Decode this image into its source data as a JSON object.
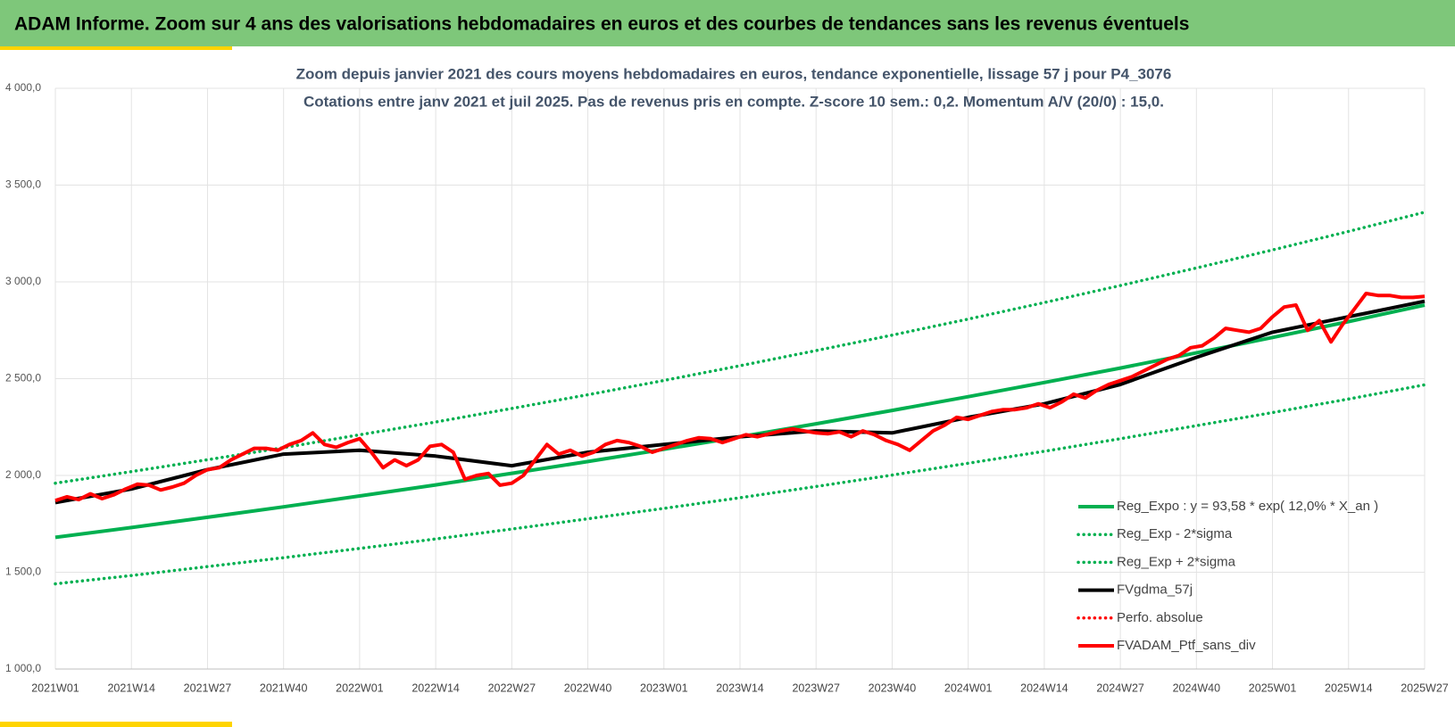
{
  "header": {
    "title": "ADAM Informe. Zoom sur 4 ans des valorisations hebdomadaires en euros et des courbes de tendances sans les revenus éventuels"
  },
  "chart_data": {
    "type": "line",
    "title": "Zoom depuis janvier 2021 des cours moyens hebdomadaires  en euros, tendance exponentielle, lissage 57 j pour P4_3076",
    "subtitle": "Cotations entre janv 2021 et juil 2025. Pas de revenus pris en compte. Z-score 10 sem.: 0,2. Momentum A/V (20/0) : 15,0.",
    "xlim": [
      0,
      234
    ],
    "xticks": [
      {
        "value": 0,
        "label": "2021W01"
      },
      {
        "value": 13,
        "label": "2021W14"
      },
      {
        "value": 26,
        "label": "2021W27"
      },
      {
        "value": 39,
        "label": "2021W40"
      },
      {
        "value": 52,
        "label": "2022W01"
      },
      {
        "value": 65,
        "label": "2022W14"
      },
      {
        "value": 78,
        "label": "2022W27"
      },
      {
        "value": 91,
        "label": "2022W40"
      },
      {
        "value": 104,
        "label": "2023W01"
      },
      {
        "value": 117,
        "label": "2023W14"
      },
      {
        "value": 130,
        "label": "2023W27"
      },
      {
        "value": 143,
        "label": "2023W40"
      },
      {
        "value": 156,
        "label": "2024W01"
      },
      {
        "value": 169,
        "label": "2024W14"
      },
      {
        "value": 182,
        "label": "2024W27"
      },
      {
        "value": 195,
        "label": "2024W40"
      },
      {
        "value": 208,
        "label": "2025W01"
      },
      {
        "value": 221,
        "label": "2025W14"
      },
      {
        "value": 234,
        "label": "2025W27"
      }
    ],
    "ylim": [
      1000,
      4000
    ],
    "yticks": [
      {
        "value": 1000,
        "label": "1 000,0"
      },
      {
        "value": 1500,
        "label": "1 500,0"
      },
      {
        "value": 2000,
        "label": "2 000,0"
      },
      {
        "value": 2500,
        "label": "2 500,0"
      },
      {
        "value": 3000,
        "label": "3 000,0"
      },
      {
        "value": 3500,
        "label": "3 500,0"
      },
      {
        "value": 4000,
        "label": "4 000,0"
      }
    ],
    "grid": true,
    "series": [
      {
        "name": "Reg_Expo : y = 93,58 * exp( 12,0% *  X_an )",
        "color": "#00b050",
        "dash": "solid",
        "x": [
          0,
          13,
          26,
          39,
          52,
          65,
          78,
          91,
          104,
          117,
          130,
          143,
          156,
          169,
          182,
          195,
          208,
          221,
          234
        ],
        "values": [
          1680,
          1731,
          1784,
          1838,
          1894,
          1951,
          2011,
          2072,
          2135,
          2200,
          2267,
          2336,
          2407,
          2480,
          2555,
          2633,
          2713,
          2795,
          2880
        ]
      },
      {
        "name": "Reg_Exp - 2*sigma",
        "color": "#00b050",
        "dash": "dotted",
        "x": [
          0,
          13,
          26,
          39,
          52,
          65,
          78,
          91,
          104,
          117,
          130,
          143,
          156,
          169,
          182,
          195,
          208,
          221,
          234
        ],
        "values": [
          1440,
          1483,
          1529,
          1575,
          1623,
          1672,
          1723,
          1776,
          1830,
          1885,
          1943,
          2002,
          2063,
          2125,
          2190,
          2257,
          2325,
          2395,
          2468
        ]
      },
      {
        "name": "Reg_Exp + 2*sigma",
        "color": "#00b050",
        "dash": "dotted",
        "x": [
          0,
          13,
          26,
          39,
          52,
          65,
          78,
          91,
          104,
          117,
          130,
          143,
          156,
          169,
          182,
          195,
          208,
          221,
          234
        ],
        "values": [
          1960,
          2020,
          2081,
          2144,
          2210,
          2276,
          2346,
          2417,
          2491,
          2567,
          2645,
          2725,
          2808,
          2893,
          2981,
          3072,
          3165,
          3261,
          3360
        ]
      },
      {
        "name": "FVgdma_57j",
        "color": "#000000",
        "dash": "solid",
        "x": [
          0,
          13,
          26,
          39,
          52,
          65,
          78,
          91,
          104,
          117,
          130,
          143,
          156,
          169,
          182,
          195,
          208,
          221,
          234
        ],
        "values": [
          1860,
          1930,
          2030,
          2110,
          2130,
          2100,
          2050,
          2120,
          2160,
          2200,
          2230,
          2220,
          2300,
          2370,
          2470,
          2610,
          2740,
          2820,
          2900
        ]
      },
      {
        "name": "Perfo. absolue",
        "color": "#ff0000",
        "dash": "dotted",
        "x": [
          0,
          13,
          26,
          39,
          52,
          65,
          78,
          91,
          104,
          117,
          130,
          143,
          156,
          169,
          182,
          195,
          208,
          221,
          234
        ],
        "values": [
          null,
          null,
          null,
          null,
          null,
          null,
          null,
          null,
          null,
          null,
          null,
          null,
          null,
          null,
          null,
          null,
          null,
          null,
          null
        ]
      },
      {
        "name": "FVADAM_Ptf_sans_div",
        "color": "#ff0000",
        "dash": "solid",
        "x": [
          0,
          2,
          4,
          6,
          8,
          10,
          12,
          14,
          16,
          18,
          20,
          22,
          24,
          26,
          28,
          30,
          32,
          34,
          36,
          38,
          40,
          42,
          44,
          46,
          48,
          50,
          52,
          54,
          56,
          58,
          60,
          62,
          64,
          66,
          68,
          70,
          72,
          74,
          76,
          78,
          80,
          82,
          84,
          86,
          88,
          90,
          92,
          94,
          96,
          98,
          100,
          102,
          104,
          106,
          108,
          110,
          112,
          114,
          116,
          118,
          120,
          122,
          124,
          126,
          128,
          130,
          132,
          134,
          136,
          138,
          140,
          142,
          144,
          146,
          148,
          150,
          152,
          154,
          156,
          158,
          160,
          162,
          164,
          166,
          168,
          170,
          172,
          174,
          176,
          178,
          180,
          182,
          184,
          186,
          188,
          190,
          192,
          194,
          196,
          198,
          200,
          202,
          204,
          206,
          208,
          210,
          212,
          214,
          216,
          218,
          220,
          222,
          224,
          226,
          228,
          230,
          232,
          234
        ],
        "values": [
          1870,
          1890,
          1875,
          1905,
          1880,
          1900,
          1930,
          1955,
          1950,
          1925,
          1940,
          1960,
          2000,
          2030,
          2040,
          2080,
          2110,
          2140,
          2140,
          2130,
          2160,
          2180,
          2220,
          2160,
          2145,
          2170,
          2190,
          2120,
          2040,
          2080,
          2050,
          2080,
          2150,
          2160,
          2120,
          1980,
          2000,
          2010,
          1950,
          1960,
          2000,
          2080,
          2160,
          2110,
          2130,
          2100,
          2120,
          2160,
          2180,
          2170,
          2150,
          2120,
          2140,
          2160,
          2180,
          2195,
          2190,
          2170,
          2190,
          2210,
          2200,
          2215,
          2230,
          2240,
          2230,
          2220,
          2215,
          2225,
          2200,
          2230,
          2210,
          2180,
          2160,
          2130,
          2180,
          2230,
          2260,
          2300,
          2290,
          2310,
          2330,
          2340,
          2340,
          2350,
          2370,
          2350,
          2380,
          2420,
          2400,
          2440,
          2470,
          2490,
          2510,
          2540,
          2570,
          2600,
          2620,
          2660,
          2670,
          2710,
          2760,
          2750,
          2740,
          2760,
          2820,
          2870,
          2880,
          2750,
          2800,
          2690,
          2780,
          2860,
          2940,
          2930,
          2930,
          2920,
          2920,
          2925
        ]
      }
    ]
  }
}
